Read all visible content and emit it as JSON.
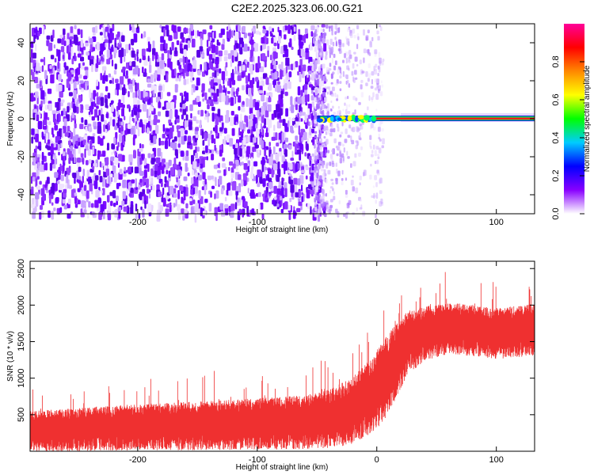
{
  "title": "C2E2.2025.323.06.00.G21",
  "chart_data": [
    {
      "type": "heatmap",
      "xlabel": "Height of straight line (km)",
      "ylabel": "Frequency (Hz)",
      "xlim": [
        -290,
        132
      ],
      "ylim": [
        -50,
        50
      ],
      "xticks": [
        -200,
        -100,
        0,
        100
      ],
      "yticks": [
        -40,
        -20,
        0,
        20,
        40
      ],
      "xtick_labels": [
        "-200",
        "-100",
        "0",
        "100"
      ],
      "ytick_labels": [
        "-40",
        "-20",
        "0",
        "20",
        "40"
      ],
      "noise_region_x": [
        -290,
        -50
      ],
      "signal_start_x": -50,
      "signal_frequency_hz": 0,
      "colorbar": {
        "label": "Normalized spectral amplitude",
        "range": [
          0,
          1
        ],
        "ticks": [
          0.0,
          0.2,
          0.4,
          0.6,
          0.8
        ],
        "tick_labels": [
          "0.0",
          "0.2",
          "0.4",
          "0.6",
          "0.8"
        ],
        "colors": [
          "#ffffff",
          "#8800ff",
          "#0000ff",
          "#00ccff",
          "#00ff00",
          "#ffff00",
          "#ff8800",
          "#ff0000",
          "#ff0099"
        ]
      },
      "grid": false
    },
    {
      "type": "line",
      "xlabel": "Height of straight line (km)",
      "ylabel": "SNR (10 * v/v)",
      "xlim": [
        -290,
        132
      ],
      "ylim": [
        0,
        2600
      ],
      "xticks": [
        -200,
        -100,
        0,
        100
      ],
      "yticks": [
        500,
        1000,
        1500,
        2000,
        2500
      ],
      "xtick_labels": [
        "-200",
        "-100",
        "0",
        "100"
      ],
      "ytick_labels": [
        "500",
        "1000",
        "1500",
        "2000",
        "2500"
      ],
      "series": [
        {
          "color": "#ef3030",
          "x": [
            -290,
            -250,
            -200,
            -150,
            -100,
            -60,
            -40,
            -20,
            -5,
            5,
            15,
            25,
            40,
            60,
            80,
            100,
            115,
            132
          ],
          "mean": [
            330,
            350,
            390,
            410,
            440,
            470,
            520,
            640,
            860,
            1050,
            1300,
            1550,
            1680,
            1750,
            1720,
            1680,
            1700,
            1730
          ],
          "spread": [
            300,
            320,
            340,
            360,
            380,
            400,
            430,
            500,
            560,
            600,
            560,
            480,
            400,
            380,
            380,
            380,
            380,
            380
          ]
        }
      ],
      "grid": false
    }
  ]
}
